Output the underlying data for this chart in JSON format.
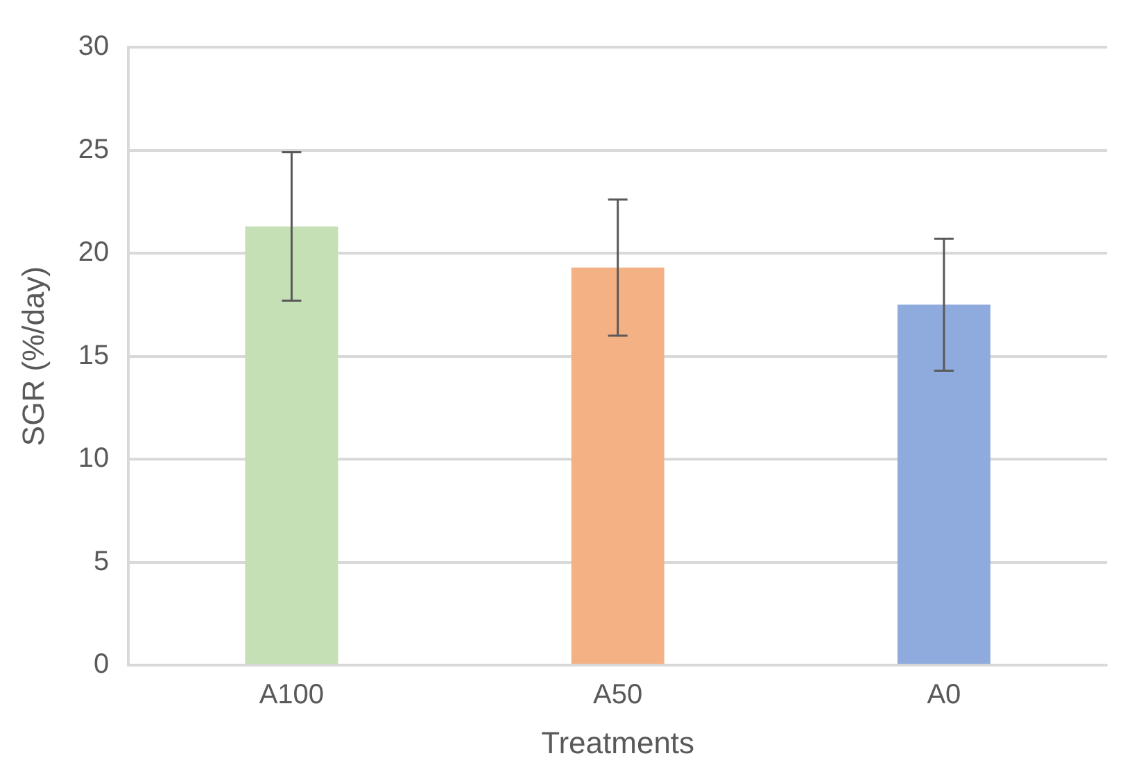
{
  "chart_data": {
    "type": "bar",
    "xlabel": "Treatments",
    "ylabel": "SGR (%/day)",
    "categories": [
      "A100",
      "A50",
      "A0"
    ],
    "values": [
      21.3,
      19.3,
      17.5
    ],
    "colors": [
      "#c5e0b4",
      "#f4b183",
      "#8faadc"
    ],
    "errors": [
      3.6,
      3.3,
      3.2
    ],
    "ylim": [
      0,
      30
    ],
    "yticks": [
      0,
      5,
      10,
      15,
      20,
      25,
      30
    ],
    "grid": "y",
    "legend": false
  }
}
